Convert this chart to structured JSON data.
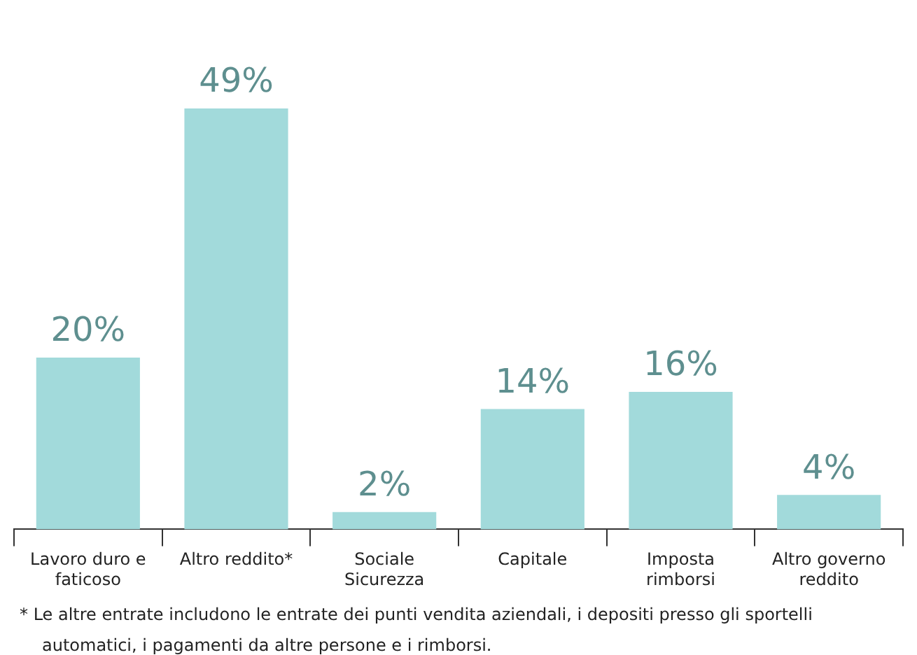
{
  "chart_data": {
    "type": "bar",
    "categories": [
      "Lavoro duro e faticoso",
      "Altro reddito*",
      "Sociale Sicurezza",
      "Capitale",
      "Imposta rimborsi",
      "Altro governo reddito"
    ],
    "values": [
      20,
      49,
      2,
      14,
      16,
      4
    ],
    "value_labels": [
      "20%",
      "49%",
      "2%",
      "14%",
      "16%",
      "4%"
    ],
    "color": "#a2dadb",
    "annotations": [
      "* Le altre entrate includono le entrate dei punti vendita aziendali, i depositi presso gli sportelli automatici, i pagamenti da altre persone e i rimborsi."
    ],
    "legend": false,
    "grid": false,
    "tick_labels": "x"
  }
}
